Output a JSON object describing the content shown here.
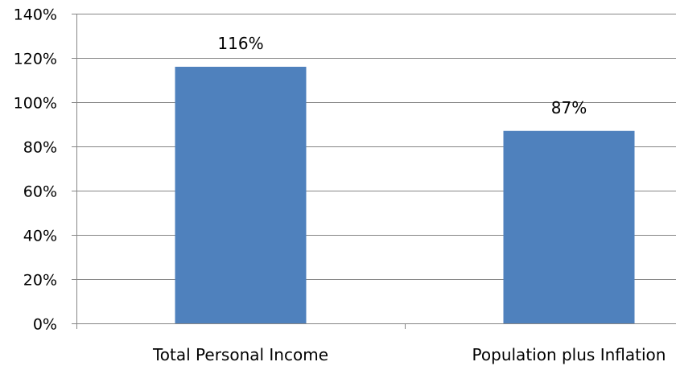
{
  "chart_data": {
    "type": "bar",
    "title": "",
    "xlabel": "",
    "ylabel": "",
    "categories": [
      "Total Personal Income",
      "Population plus Inflation"
    ],
    "values": [
      116,
      87
    ],
    "data_labels": [
      "116%",
      "87%"
    ],
    "ylim": [
      0,
      140
    ],
    "y_ticks": [
      0,
      20,
      40,
      60,
      80,
      100,
      120,
      140
    ],
    "y_tick_labels": [
      "0%",
      "20%",
      "40%",
      "60%",
      "80%",
      "100%",
      "120%",
      "140%"
    ],
    "grid": true,
    "legend": "none",
    "colors": {
      "bar": "#4F81BD",
      "grid": "#868686",
      "axis": "#868686"
    }
  }
}
